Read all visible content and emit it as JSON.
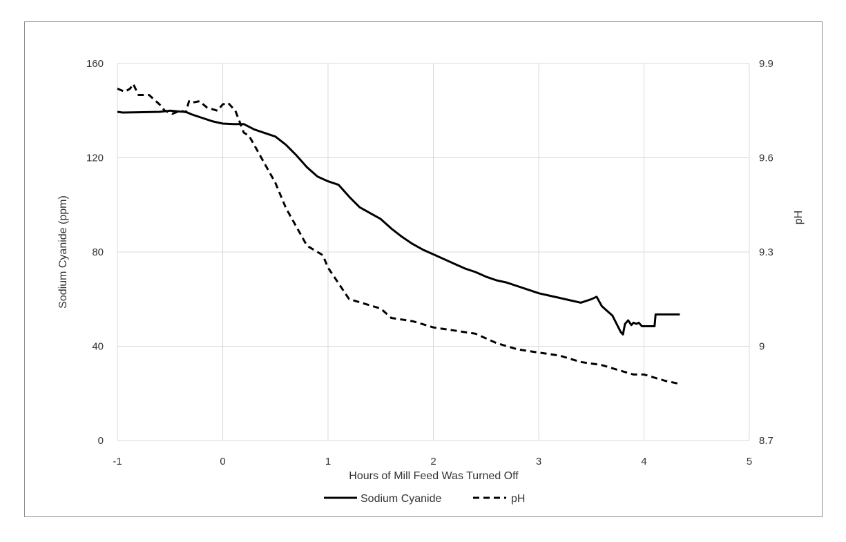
{
  "chart_data": {
    "type": "line",
    "title": "",
    "xlabel": "Hours of Mill Feed Was Turned Off",
    "ylabel": "Sodium Cyanide (ppm)",
    "y2label": "pH",
    "xlim": [
      -1,
      5
    ],
    "ylim": [
      0,
      160
    ],
    "y2lim": [
      8.7,
      9.9
    ],
    "xticks": [
      "-1",
      "0",
      "1",
      "2",
      "3",
      "4",
      "5"
    ],
    "yticks": [
      "0",
      "40",
      "80",
      "120",
      "160"
    ],
    "y2ticks": [
      "8.7",
      "9",
      "9.3",
      "9.6",
      "9.9"
    ],
    "grid": true,
    "legend_position": "bottom",
    "series": [
      {
        "name": "Sodium Cyanide",
        "axis": "left",
        "style": "solid",
        "color": "#000000",
        "x": [
          -1.0,
          -0.95,
          -0.8,
          -0.6,
          -0.5,
          -0.4,
          -0.35,
          -0.3,
          -0.2,
          -0.1,
          0.0,
          0.1,
          0.2,
          0.3,
          0.4,
          0.5,
          0.6,
          0.7,
          0.8,
          0.9,
          1.0,
          1.1,
          1.2,
          1.3,
          1.4,
          1.5,
          1.6,
          1.7,
          1.8,
          1.9,
          2.0,
          2.1,
          2.2,
          2.3,
          2.4,
          2.5,
          2.6,
          2.7,
          2.8,
          2.9,
          3.0,
          3.1,
          3.2,
          3.3,
          3.4,
          3.5,
          3.55,
          3.6,
          3.7,
          3.78,
          3.8,
          3.82,
          3.85,
          3.88,
          3.9,
          3.93,
          3.95,
          3.98,
          4.0,
          4.05,
          4.1,
          4.11,
          4.2,
          4.34
        ],
        "y": [
          139.5,
          139.2,
          139.3,
          139.5,
          140,
          139.6,
          139.5,
          138.5,
          137,
          135.5,
          134.5,
          134.3,
          134.3,
          132,
          130.5,
          129,
          125.5,
          121,
          116,
          112,
          110,
          108.5,
          103.5,
          99,
          96.5,
          94,
          90,
          86.5,
          83.5,
          81,
          79,
          77,
          75,
          73,
          71.5,
          69.5,
          68,
          67,
          65.5,
          64,
          62.5,
          61.5,
          60.5,
          59.5,
          58.5,
          60,
          61,
          57,
          53,
          46,
          45,
          49.5,
          51,
          49,
          50,
          49.5,
          50,
          48.5,
          48.5,
          48.5,
          48.5,
          53.5,
          53.5,
          53.5
        ]
      },
      {
        "name": "pH",
        "axis": "right",
        "style": "dashed",
        "color": "#000000",
        "x": [
          -1.0,
          -0.93,
          -0.88,
          -0.85,
          -0.8,
          -0.7,
          -0.6,
          -0.55,
          -0.48,
          -0.4,
          -0.35,
          -0.32,
          -0.3,
          -0.22,
          -0.15,
          -0.05,
          0.0,
          0.05,
          0.12,
          0.2,
          0.25,
          0.3,
          0.4,
          0.5,
          0.6,
          0.7,
          0.8,
          0.9,
          0.95,
          1.0,
          1.1,
          1.2,
          1.3,
          1.4,
          1.5,
          1.6,
          1.8,
          1.9,
          2.0,
          2.2,
          2.4,
          2.6,
          2.7,
          2.8,
          3.0,
          3.2,
          3.3,
          3.4,
          3.6,
          3.8,
          3.9,
          4.0,
          4.2,
          4.34
        ],
        "y": [
          9.82,
          9.81,
          9.82,
          9.835,
          9.8,
          9.8,
          9.77,
          9.75,
          9.74,
          9.75,
          9.745,
          9.78,
          9.775,
          9.78,
          9.76,
          9.75,
          9.77,
          9.775,
          9.75,
          9.68,
          9.67,
          9.64,
          9.58,
          9.52,
          9.44,
          9.38,
          9.32,
          9.3,
          9.29,
          9.25,
          9.2,
          9.15,
          9.14,
          9.13,
          9.12,
          9.09,
          9.08,
          9.07,
          9.06,
          9.05,
          9.04,
          9.01,
          9.0,
          8.99,
          8.98,
          8.97,
          8.96,
          8.95,
          8.94,
          8.92,
          8.91,
          8.91,
          8.89,
          8.88
        ]
      }
    ]
  }
}
